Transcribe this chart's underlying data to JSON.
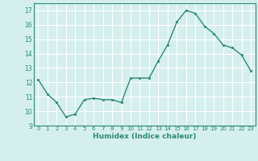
{
  "x": [
    0,
    1,
    2,
    3,
    4,
    5,
    6,
    7,
    8,
    9,
    10,
    11,
    12,
    13,
    14,
    15,
    16,
    17,
    18,
    19,
    20,
    21,
    22,
    23
  ],
  "y": [
    12.2,
    11.2,
    10.6,
    9.6,
    9.8,
    10.8,
    10.9,
    10.8,
    10.8,
    10.6,
    12.3,
    12.3,
    12.3,
    13.5,
    14.6,
    16.2,
    17.0,
    16.8,
    15.9,
    15.4,
    14.6,
    14.4,
    13.9,
    12.8
  ],
  "xlim": [
    -0.5,
    23.5
  ],
  "ylim": [
    9,
    17.5
  ],
  "yticks": [
    9,
    10,
    11,
    12,
    13,
    14,
    15,
    16,
    17
  ],
  "xticks": [
    0,
    1,
    2,
    3,
    4,
    5,
    6,
    7,
    8,
    9,
    10,
    11,
    12,
    13,
    14,
    15,
    16,
    17,
    18,
    19,
    20,
    21,
    22,
    23
  ],
  "xlabel": "Humidex (Indice chaleur)",
  "line_color": "#2e8b72",
  "marker_color": "#2e8b72",
  "bg_color": "#d4efee",
  "grid_color": "#ffffff"
}
